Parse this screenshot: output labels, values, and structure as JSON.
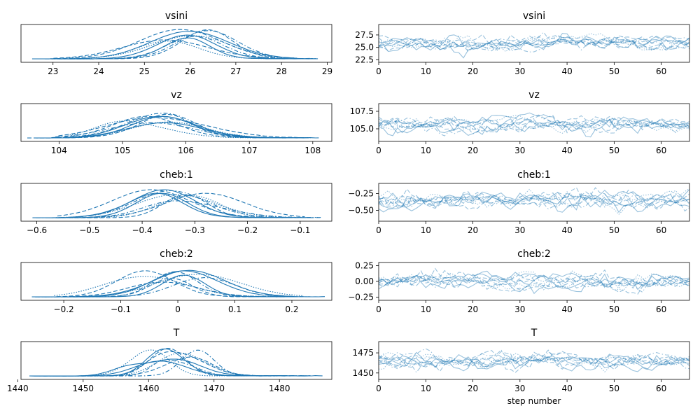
{
  "colors": {
    "series": "#1f77b4",
    "axes": "#000000"
  },
  "kde_panels": [
    {
      "title": "vsini",
      "xlim": [
        22.3,
        29.1
      ],
      "xticks": [
        23,
        24,
        25,
        26,
        27,
        28,
        29
      ],
      "n_curves": 10,
      "center": 25.9,
      "spread": 1.4
    },
    {
      "title": "vz",
      "xlim": [
        103.4,
        108.3
      ],
      "xticks": [
        104,
        105,
        106,
        107,
        108
      ],
      "n_curves": 10,
      "center": 105.5,
      "spread": 1.0
    },
    {
      "title": "cheb:1",
      "xlim": [
        -0.63,
        -0.04
      ],
      "xticks": [
        -0.6,
        -0.5,
        -0.4,
        -0.3,
        -0.2,
        -0.1
      ],
      "n_curves": 10,
      "center": -0.34,
      "spread": 0.11
    },
    {
      "title": "cheb:2",
      "xlim": [
        -0.275,
        0.27
      ],
      "xticks": [
        -0.2,
        -0.1,
        0.0,
        0.1,
        0.2
      ],
      "n_curves": 10,
      "center": 0.0,
      "spread": 0.1
    },
    {
      "title": "T",
      "xlim": [
        1440.5,
        1488
      ],
      "xticks": [
        1440,
        1450,
        1460,
        1470,
        1480
      ],
      "n_curves": 10,
      "center": 1465,
      "spread": 7
    }
  ],
  "trace_panels": [
    {
      "title": "vsini",
      "ylim": [
        22.0,
        29.6
      ],
      "yticks": [
        "22.5",
        "25.0",
        "27.5"
      ],
      "ytick_values": [
        22.5,
        25.0,
        27.5
      ],
      "center": 25.8,
      "spread": 0.9,
      "n_chains": 10
    },
    {
      "title": "vz",
      "ylim": [
        103.2,
        108.6
      ],
      "yticks": [
        "105.0",
        "107.5"
      ],
      "ytick_values": [
        105.0,
        107.5
      ],
      "center": 105.6,
      "spread": 0.65,
      "n_chains": 10
    },
    {
      "title": "cheb:1",
      "ylim": [
        -0.66,
        -0.1
      ],
      "yticks": [
        "-0.25",
        "-0.50"
      ],
      "ytick_values": [
        -0.25,
        -0.5
      ],
      "center": -0.35,
      "spread": 0.08,
      "n_chains": 10
    },
    {
      "title": "cheb:2",
      "ylim": [
        -0.3,
        0.3
      ],
      "yticks": [
        "0.25",
        "0.00",
        "-0.25"
      ],
      "ytick_values": [
        0.25,
        0.0,
        -0.25
      ],
      "center": 0.0,
      "spread": 0.08,
      "n_chains": 10
    },
    {
      "title": "T",
      "ylim": [
        1442,
        1489
      ],
      "yticks": [
        "1475",
        "1450"
      ],
      "ytick_values": [
        1475,
        1450
      ],
      "center": 1465,
      "spread": 6,
      "n_chains": 10
    }
  ],
  "trace_xaxis": {
    "xlim": [
      0,
      66
    ],
    "xticks": [
      0,
      10,
      20,
      30,
      40,
      50,
      60
    ],
    "xlabel": "step number"
  },
  "chart_data": {
    "type": "line",
    "description_panels": [
      "vsini",
      "vz",
      "cheb:1",
      "cheb:2",
      "T"
    ],
    "trace_x": {
      "range": [
        0,
        66
      ],
      "label": "step number"
    },
    "kde_ranges": {
      "vsini": [
        22.3,
        29.1
      ],
      "vz": [
        103.4,
        108.3
      ],
      "cheb:1": [
        -0.63,
        -0.04
      ],
      "cheb:2": [
        -0.275,
        0.27
      ],
      "T": [
        1440.5,
        1488
      ]
    },
    "trace_y_ranges": {
      "vsini": [
        22.0,
        29.6
      ],
      "vz": [
        103.2,
        108.6
      ],
      "cheb:1": [
        -0.66,
        -0.1
      ],
      "cheb:2": [
        -0.3,
        0.3
      ],
      "T": [
        1442,
        1489
      ]
    },
    "grid": false
  }
}
